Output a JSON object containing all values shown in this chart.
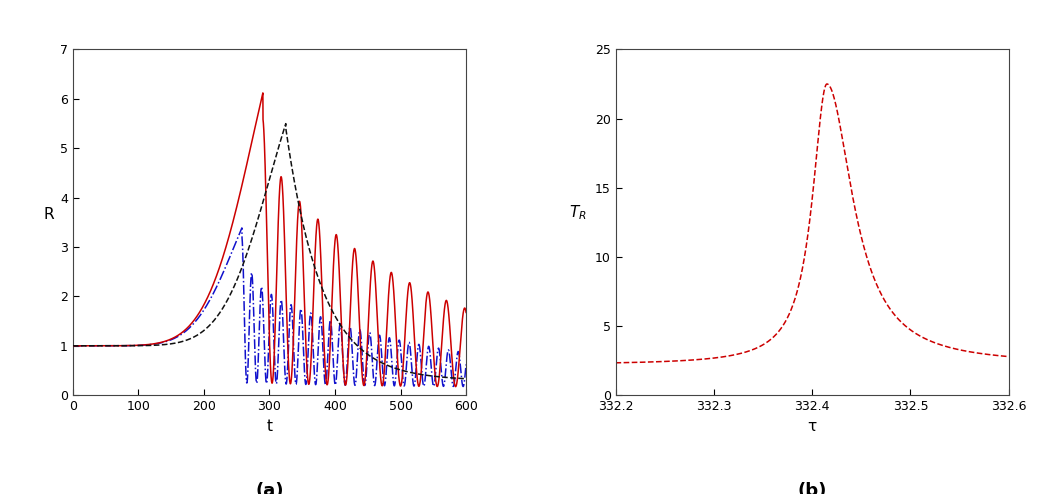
{
  "panel_a": {
    "xlabel": "t",
    "ylabel": "R",
    "xlim": [
      0,
      600
    ],
    "ylim": [
      0,
      7
    ],
    "xticks": [
      0,
      100,
      200,
      300,
      400,
      500,
      600
    ],
    "yticks": [
      0,
      1,
      2,
      3,
      4,
      5,
      6,
      7
    ],
    "label": "(a)"
  },
  "panel_b": {
    "xlabel": "τ",
    "ylabel": "T_R",
    "xlim": [
      332.2,
      332.6
    ],
    "ylim": [
      0,
      25
    ],
    "xticks": [
      332.2,
      332.3,
      332.4,
      332.5,
      332.6
    ],
    "yticks": [
      0,
      5,
      10,
      15,
      20,
      25
    ],
    "label": "(b)"
  },
  "red_color": "#cc0000",
  "black_color": "#111111",
  "blue_color": "#1111cc",
  "bg_color": "#ffffff",
  "linewidth": 1.1
}
